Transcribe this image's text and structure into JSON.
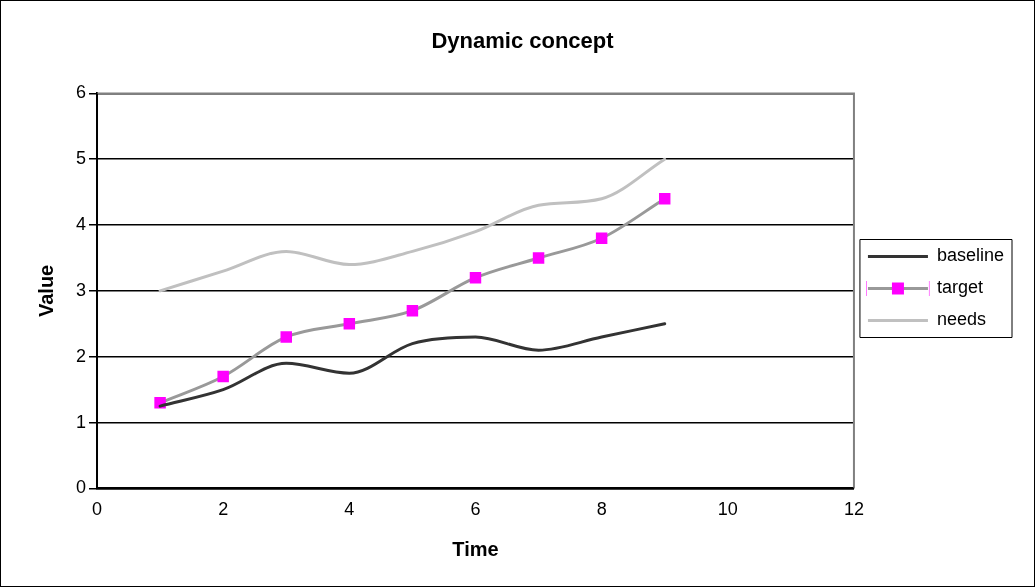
{
  "chart_data": {
    "type": "line",
    "title": "Dynamic concept",
    "xlabel": "Time",
    "ylabel": "Value",
    "x": [
      1,
      2,
      3,
      4,
      5,
      6,
      7,
      8,
      9
    ],
    "series": [
      {
        "name": "baseline",
        "color": "#333333",
        "marker": "none",
        "values": [
          1.25,
          1.5,
          1.9,
          1.75,
          2.2,
          2.3,
          2.1,
          2.3,
          2.5
        ]
      },
      {
        "name": "target",
        "color": "#999999",
        "marker": "square",
        "colors": [
          "#ff00ff",
          "#ff00ff",
          "#ff00ff",
          "#ff00ff",
          "#ff00ff",
          "#ff00ff",
          "#ff00ff",
          "#ff00ff",
          "#ff00ff"
        ],
        "values": [
          1.3,
          1.7,
          2.3,
          2.5,
          2.7,
          3.2,
          3.5,
          3.8,
          4.4
        ]
      },
      {
        "name": "needs",
        "color": "#c0c0c0",
        "marker": "none",
        "values": [
          3,
          3.3,
          3.6,
          3.4,
          3.6,
          3.9,
          4.3,
          4.4,
          5
        ]
      }
    ],
    "xlim": [
      0,
      12
    ],
    "xticks": [
      0,
      2,
      4,
      6,
      8,
      10,
      12
    ],
    "ylim": [
      0,
      6
    ],
    "yticks": [
      0,
      1,
      2,
      3,
      4,
      5,
      6
    ],
    "grid": "y",
    "legend": "right"
  }
}
